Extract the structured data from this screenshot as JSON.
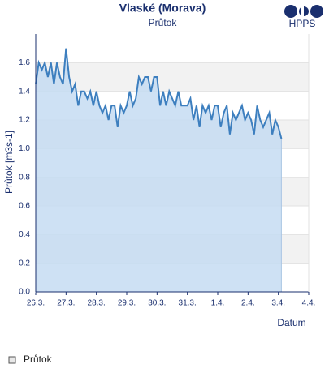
{
  "chart_data": {
    "type": "area",
    "title": "Vlaské (Morava)",
    "subtitle": "Průtok",
    "logo": "HPPS",
    "ylabel": "Průtok [m3s-1]",
    "xlabel": "Datum",
    "ylim": [
      0,
      1.8
    ],
    "yticks": [
      {
        "value": 0,
        "label": "0.0"
      },
      0.2,
      0.4,
      0.6,
      0.8,
      {
        "value": 1,
        "label": "1.0"
      },
      1.2,
      1.4,
      1.6
    ],
    "xlim": [
      0,
      9
    ],
    "xticks": [
      {
        "value": 0,
        "label": "26.3."
      },
      {
        "value": 1,
        "label": "27.3."
      },
      {
        "value": 2,
        "label": "28.3."
      },
      {
        "value": 3,
        "label": "29.3."
      },
      {
        "value": 4,
        "label": "30.3."
      },
      {
        "value": 5,
        "label": "31.3."
      },
      {
        "value": 6,
        "label": "1.4."
      },
      {
        "value": 7,
        "label": "2.4."
      },
      {
        "value": 8,
        "label": "3.4."
      },
      {
        "value": 9,
        "label": "4.4."
      }
    ],
    "grid": true,
    "x": [
      0,
      0.1,
      0.2,
      0.3,
      0.4,
      0.5,
      0.6,
      0.7,
      0.8,
      0.9,
      1,
      1.1,
      1.2,
      1.3,
      1.4,
      1.5,
      1.6,
      1.7,
      1.8,
      1.9,
      2,
      2.1,
      2.2,
      2.3,
      2.4,
      2.5,
      2.6,
      2.7,
      2.8,
      2.9,
      3,
      3.1,
      3.2,
      3.3,
      3.4,
      3.5,
      3.6,
      3.7,
      3.8,
      3.9,
      4,
      4.1,
      4.2,
      4.3,
      4.4,
      4.5,
      4.6,
      4.7,
      4.8,
      4.9,
      5,
      5.1,
      5.2,
      5.3,
      5.4,
      5.5,
      5.6,
      5.7,
      5.8,
      5.9,
      6,
      6.1,
      6.2,
      6.3,
      6.4,
      6.5,
      6.6,
      6.7,
      6.8,
      6.9,
      7,
      7.1,
      7.2,
      7.3,
      7.4,
      7.5,
      7.6,
      7.7,
      7.8,
      7.9,
      8,
      8.1
    ],
    "series": [
      {
        "name": "Průtok",
        "color": "#3d7fbf",
        "fill": "#c6dcf2",
        "values": [
          1.45,
          1.6,
          1.55,
          1.6,
          1.5,
          1.6,
          1.45,
          1.6,
          1.5,
          1.45,
          1.7,
          1.5,
          1.4,
          1.45,
          1.3,
          1.4,
          1.4,
          1.35,
          1.4,
          1.3,
          1.4,
          1.3,
          1.25,
          1.3,
          1.2,
          1.3,
          1.3,
          1.15,
          1.3,
          1.25,
          1.3,
          1.4,
          1.3,
          1.35,
          1.5,
          1.45,
          1.5,
          1.5,
          1.4,
          1.5,
          1.5,
          1.3,
          1.4,
          1.3,
          1.4,
          1.35,
          1.3,
          1.4,
          1.3,
          1.3,
          1.3,
          1.35,
          1.2,
          1.3,
          1.15,
          1.3,
          1.25,
          1.3,
          1.2,
          1.3,
          1.3,
          1.15,
          1.25,
          1.3,
          1.1,
          1.25,
          1.2,
          1.25,
          1.3,
          1.2,
          1.25,
          1.2,
          1.1,
          1.3,
          1.2,
          1.15,
          1.2,
          1.25,
          1.1,
          1.2,
          1.15,
          1.07
        ]
      }
    ]
  }
}
